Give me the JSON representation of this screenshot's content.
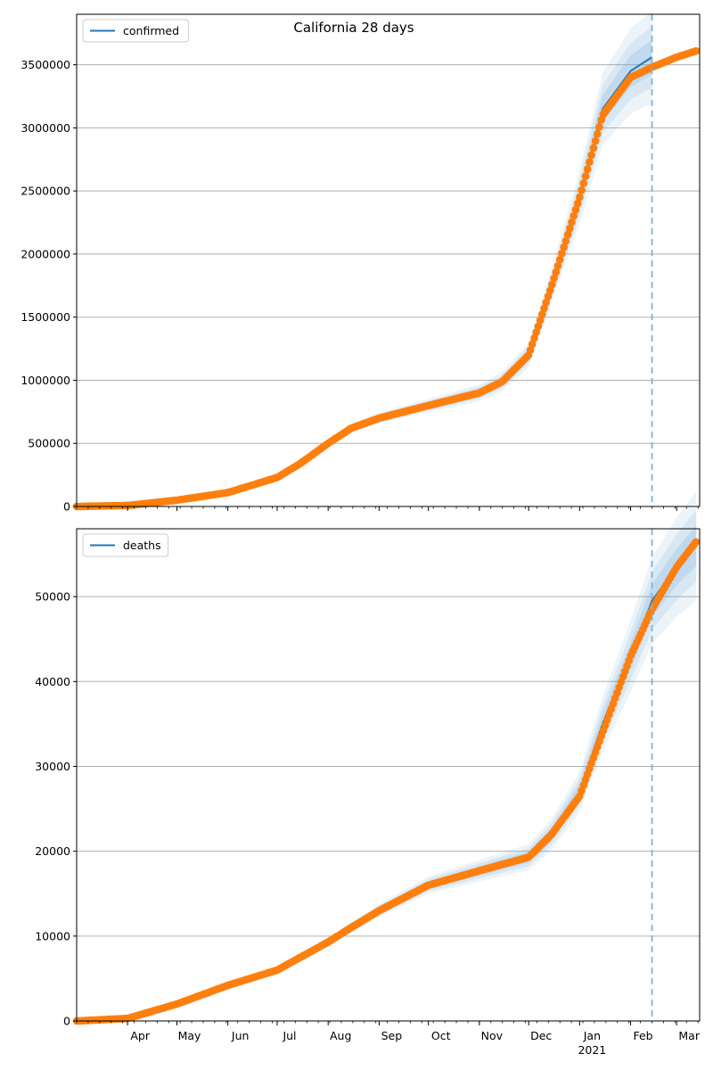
{
  "figure_title": "California 28 days",
  "colors": {
    "model_line": "#1f77b4",
    "observed": "#ff7f0e",
    "band": "#6fa8dc",
    "cutoff_line": "#7fb3d5",
    "grid": "#b0b0b0"
  },
  "chart_data": [
    {
      "type": "line",
      "panel": "top",
      "title": "",
      "xlabel": "",
      "ylabel": "",
      "x_range": [
        "2020-03-01",
        "2021-03-15"
      ],
      "ylim": [
        0,
        3900000
      ],
      "yticks": [
        0,
        500000,
        1000000,
        1500000,
        2000000,
        2500000,
        3000000,
        3500000
      ],
      "ytick_labels": [
        "0",
        "500000",
        "1000000",
        "1500000",
        "2000000",
        "2500000",
        "3000000",
        "3500000"
      ],
      "grid": "horizontal",
      "legend": {
        "position": "top-left",
        "entries": [
          "confirmed"
        ]
      },
      "cutoff_date": "2021-02-14",
      "series": [
        {
          "name": "confirmed",
          "kind": "model-line-with-bands",
          "x": [
            "2020-03-01",
            "2020-04-01",
            "2020-05-01",
            "2020-06-01",
            "2020-07-01",
            "2020-07-15",
            "2020-08-01",
            "2020-08-15",
            "2020-09-01",
            "2020-10-01",
            "2020-11-01",
            "2020-11-15",
            "2020-12-01",
            "2020-12-15",
            "2021-01-01",
            "2021-01-15",
            "2021-02-01",
            "2021-02-14"
          ],
          "y": [
            0,
            8000,
            50000,
            110000,
            230000,
            340000,
            500000,
            620000,
            700000,
            800000,
            900000,
            990000,
            1200000,
            1750000,
            2450000,
            3150000,
            3450000,
            3560000
          ]
        },
        {
          "name": "",
          "kind": "observed-points",
          "x": [
            "2020-03-01",
            "2020-04-01",
            "2020-05-01",
            "2020-06-01",
            "2020-07-01",
            "2020-07-15",
            "2020-08-01",
            "2020-08-15",
            "2020-09-01",
            "2020-10-01",
            "2020-11-01",
            "2020-11-15",
            "2020-12-01",
            "2020-12-15",
            "2021-01-01",
            "2021-01-15",
            "2021-02-01",
            "2021-02-14",
            "2021-03-01",
            "2021-03-13"
          ],
          "y": [
            0,
            8000,
            50000,
            110000,
            230000,
            340000,
            500000,
            620000,
            700000,
            800000,
            900000,
            990000,
            1200000,
            1750000,
            2450000,
            3100000,
            3400000,
            3480000,
            3560000,
            3610000
          ]
        }
      ]
    },
    {
      "type": "line",
      "panel": "bottom",
      "title": "",
      "xlabel": "",
      "ylabel": "",
      "x_range": [
        "2020-03-01",
        "2021-03-15"
      ],
      "ylim": [
        0,
        58000
      ],
      "yticks": [
        0,
        10000,
        20000,
        30000,
        40000,
        50000
      ],
      "ytick_labels": [
        "0",
        "10000",
        "20000",
        "30000",
        "40000",
        "50000"
      ],
      "grid": "horizontal",
      "legend": {
        "position": "top-left",
        "entries": [
          "deaths"
        ]
      },
      "cutoff_date": "2021-02-14",
      "xtick_labels": [
        "Apr",
        "May",
        "Jun",
        "Jul",
        "Aug",
        "Sep",
        "Oct",
        "Nov",
        "Dec",
        "Jan",
        "Feb",
        "Mar"
      ],
      "xtick_dates": [
        "2020-04-01",
        "2020-05-01",
        "2020-06-01",
        "2020-07-01",
        "2020-08-01",
        "2020-09-01",
        "2020-10-01",
        "2020-11-01",
        "2020-12-01",
        "2021-01-01",
        "2021-02-01",
        "2021-03-01"
      ],
      "year_label": "2021",
      "series": [
        {
          "name": "deaths",
          "kind": "model-line-with-bands",
          "x": [
            "2020-03-01",
            "2020-04-01",
            "2020-05-01",
            "2020-06-01",
            "2020-07-01",
            "2020-08-01",
            "2020-08-15",
            "2020-09-01",
            "2020-10-01",
            "2020-11-01",
            "2020-12-01",
            "2020-12-15",
            "2021-01-01",
            "2021-01-15",
            "2021-02-01",
            "2021-02-14",
            "2021-03-01",
            "2021-03-13"
          ],
          "y": [
            0,
            300,
            2000,
            4200,
            6000,
            9300,
            11000,
            13000,
            16000,
            17700,
            19300,
            22000,
            27000,
            35000,
            43000,
            49500,
            53500,
            56000
          ]
        },
        {
          "name": "",
          "kind": "observed-points",
          "x": [
            "2020-03-01",
            "2020-04-01",
            "2020-05-01",
            "2020-06-01",
            "2020-07-01",
            "2020-08-01",
            "2020-08-15",
            "2020-09-01",
            "2020-10-01",
            "2020-11-01",
            "2020-12-01",
            "2020-12-15",
            "2021-01-01",
            "2021-01-15",
            "2021-02-01",
            "2021-02-14",
            "2021-03-01",
            "2021-03-13"
          ],
          "y": [
            0,
            300,
            2000,
            4200,
            6000,
            9300,
            11000,
            13000,
            16000,
            17700,
            19300,
            22000,
            26500,
            34000,
            43000,
            48500,
            53500,
            56500
          ]
        }
      ]
    }
  ]
}
